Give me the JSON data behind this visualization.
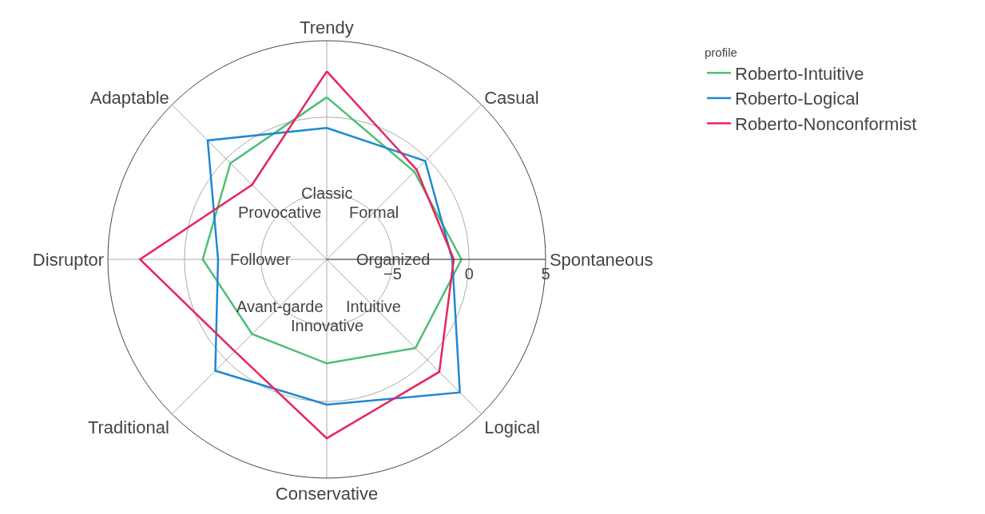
{
  "chart_data": {
    "type": "radar",
    "categories": [
      "Trendy",
      "Casual",
      "Spontaneous",
      "Logical",
      "Conservative",
      "Traditional",
      "Disruptor",
      "Adaptable"
    ],
    "legend_title": "profile",
    "series": [
      {
        "name": "Roberto-Intuitive",
        "color": "#4cbf74",
        "values": [
          1.3,
          -1.2,
          -0.5,
          -1.1,
          -2.5,
          -2.4,
          -1.2,
          -0.4
        ]
      },
      {
        "name": "Roberto-Logical",
        "color": "#1f88d2",
        "values": [
          -0.7,
          -0.2,
          -1.1,
          3.0,
          0.2,
          1.0,
          -2.2,
          1.7
        ]
      },
      {
        "name": "Roberto-Nonconformist",
        "color": "#e8245e",
        "values": [
          3.0,
          -1.0,
          -1.0,
          1.1,
          2.4,
          -0.8,
          2.9,
          -2.4
        ]
      }
    ],
    "annotations": [
      "Classic",
      "Formal",
      "Organized",
      "Intuitive",
      "Innovative",
      "Avant-garde",
      "Follower",
      "Provocative"
    ],
    "ylim": [
      -9.3,
      5
    ],
    "yticks": [
      {
        "value": -5,
        "label": "−5"
      },
      0,
      5
    ],
    "grid": true,
    "legend": "top right",
    "marker": "none",
    "line_style": "solid"
  }
}
